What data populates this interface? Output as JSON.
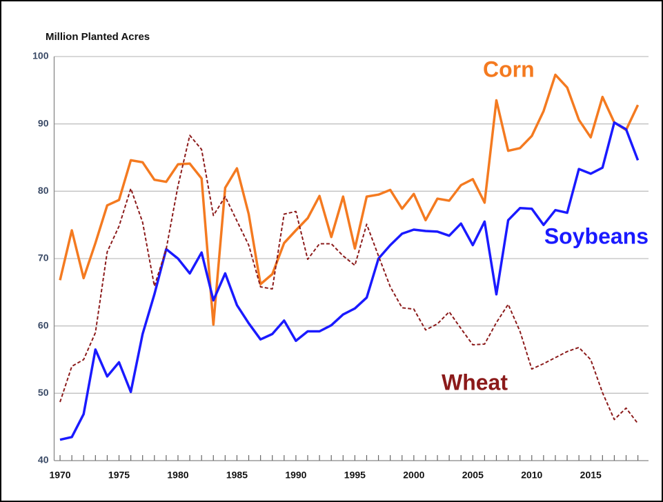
{
  "chart_data": {
    "type": "line",
    "y_label": "Million Planted Acres",
    "x": [
      1970,
      1971,
      1972,
      1973,
      1974,
      1975,
      1976,
      1977,
      1978,
      1979,
      1980,
      1981,
      1982,
      1983,
      1984,
      1985,
      1986,
      1987,
      1988,
      1989,
      1990,
      1991,
      1992,
      1993,
      1994,
      1995,
      1996,
      1997,
      1998,
      1999,
      2000,
      2001,
      2002,
      2003,
      2004,
      2005,
      2006,
      2007,
      2008,
      2009,
      2010,
      2011,
      2012,
      2013,
      2014,
      2015,
      2016,
      2017,
      2018,
      2019
    ],
    "series": [
      {
        "name": "Corn",
        "color": "#f47a20",
        "dash": false,
        "values": [
          66.8,
          74.2,
          67.1,
          72.3,
          77.9,
          78.7,
          84.6,
          84.3,
          81.7,
          81.4,
          84.0,
          84.1,
          81.9,
          60.2,
          80.5,
          83.4,
          76.6,
          66.2,
          67.7,
          72.3,
          74.2,
          76.0,
          79.3,
          73.2,
          79.2,
          71.5,
          79.2,
          79.5,
          80.2,
          77.4,
          79.6,
          75.7,
          78.9,
          78.6,
          80.9,
          81.8,
          78.3,
          93.5,
          86.0,
          86.4,
          88.2,
          91.9,
          97.3,
          95.4,
          90.6,
          88.0,
          94.0,
          90.2,
          89.1,
          92.8
        ]
      },
      {
        "name": "Soybeans",
        "color": "#1a1aff",
        "dash": false,
        "values": [
          43.1,
          43.5,
          46.9,
          56.5,
          52.5,
          54.6,
          50.2,
          58.8,
          64.7,
          71.4,
          70.0,
          67.8,
          70.9,
          63.8,
          67.8,
          63.1,
          60.4,
          58.0,
          58.8,
          60.8,
          57.8,
          59.2,
          59.2,
          60.1,
          61.7,
          62.6,
          64.2,
          70.0,
          72.0,
          73.7,
          74.3,
          74.1,
          74.0,
          73.4,
          75.2,
          72.0,
          75.5,
          64.7,
          75.7,
          77.5,
          77.4,
          75.0,
          77.2,
          76.8,
          83.3,
          82.6,
          83.5,
          90.2,
          89.2,
          84.6
        ]
      },
      {
        "name": "Wheat",
        "color": "#8b1a1a",
        "dash": true,
        "values": [
          48.7,
          54.0,
          55.0,
          59.0,
          71.0,
          74.8,
          80.4,
          75.4,
          65.9,
          71.4,
          80.8,
          88.3,
          86.2,
          76.4,
          79.2,
          75.6,
          72.0,
          65.8,
          65.5,
          76.6,
          77.0,
          69.9,
          72.2,
          72.2,
          70.4,
          69.0,
          75.1,
          70.4,
          65.8,
          62.7,
          62.5,
          59.4,
          60.3,
          62.1,
          59.6,
          57.2,
          57.3,
          60.5,
          63.2,
          59.2,
          53.6,
          54.4,
          55.3,
          56.2,
          56.8,
          55.0,
          50.1,
          46.1,
          47.8,
          45.5
        ]
      }
    ],
    "xlim": [
      1969.5,
      2019.9
    ],
    "xticks": [
      1970,
      1975,
      1980,
      1985,
      1990,
      1995,
      2000,
      2005,
      2010,
      2015
    ],
    "ylim": [
      40,
      100
    ],
    "yticks": [
      40,
      50,
      60,
      70,
      80,
      90,
      100
    ],
    "grid": true
  }
}
